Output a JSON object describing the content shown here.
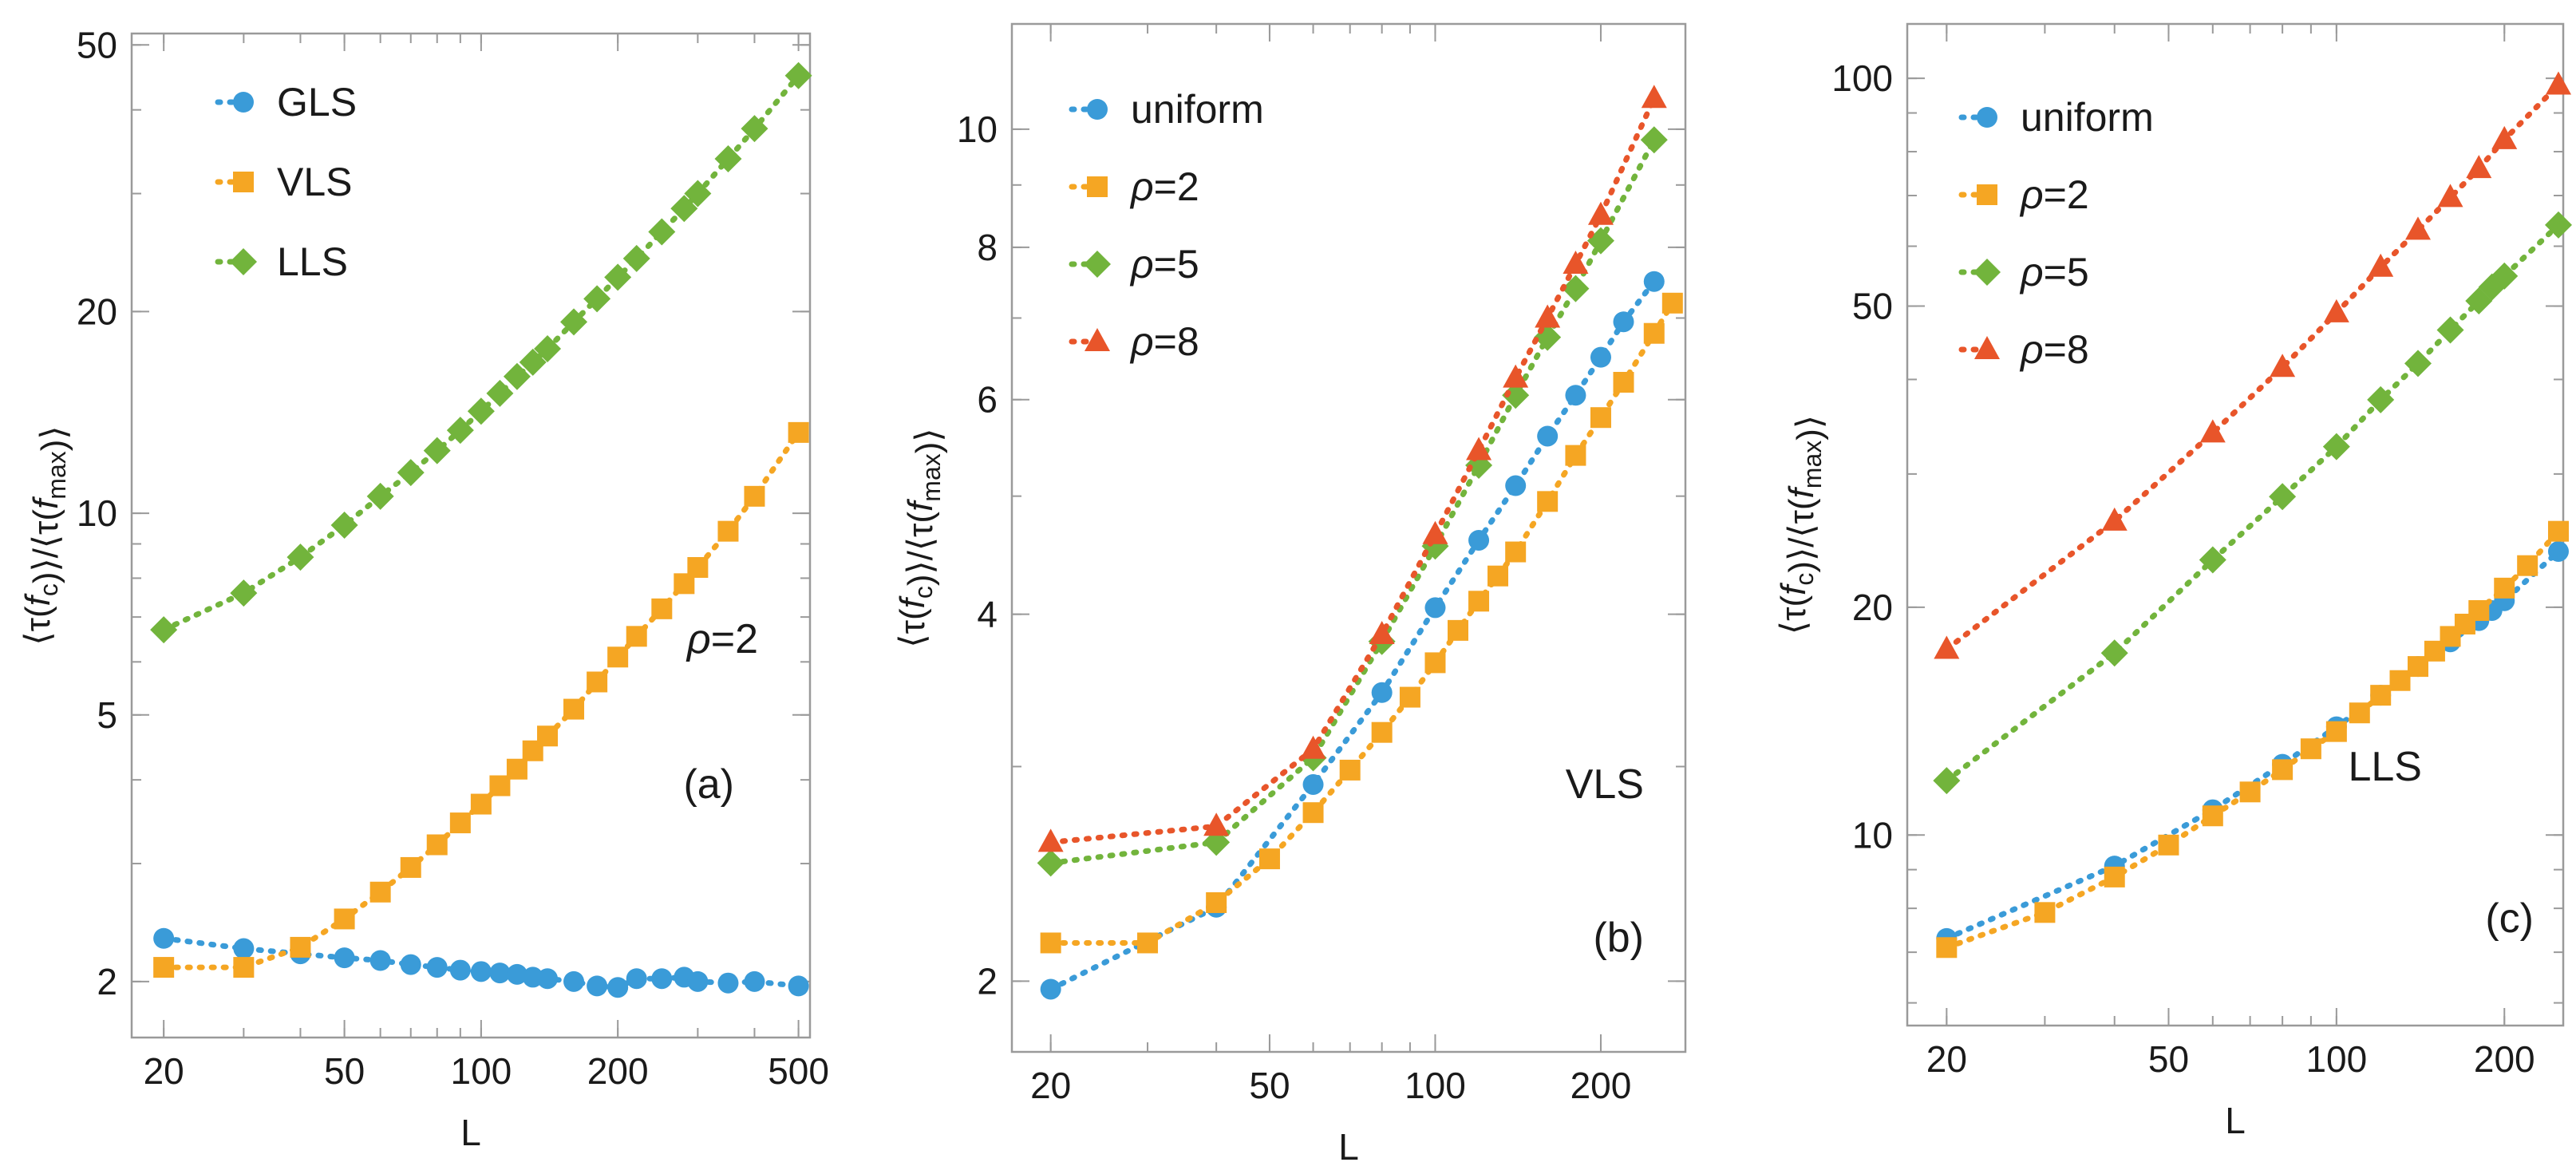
{
  "colors": {
    "blue": "#3a9bd8",
    "orange": "#f5a623",
    "green": "#72b43c",
    "red": "#e8552a",
    "frame": "#9a9a9a"
  },
  "chart_data": [
    {
      "type": "scatter",
      "panel_label": "(a)",
      "annotation": "ρ=2",
      "xlabel": "L",
      "ylabel": "⟨τ(f_c)⟩/⟨τ(f_max)⟩",
      "xscale": "log",
      "yscale": "log",
      "xlim": [
        17,
        530
      ],
      "ylim": [
        1.65,
        52
      ],
      "xticks": [
        20,
        50,
        100,
        200,
        500
      ],
      "xtick_labels": [
        "20",
        "50",
        "100",
        "200",
        "500"
      ],
      "yticks": [
        2,
        5,
        10,
        20,
        50
      ],
      "ytick_labels": [
        "2",
        "5",
        "10",
        "20",
        "50"
      ],
      "legend_position": "top-left",
      "series": [
        {
          "name": "GLS",
          "marker": "circle",
          "color": "blue",
          "x": [
            20,
            30,
            40,
            50,
            60,
            70,
            80,
            90,
            100,
            110,
            120,
            130,
            140,
            160,
            180,
            200,
            220,
            250,
            280,
            300,
            350,
            400,
            500
          ],
          "y": [
            2.32,
            2.24,
            2.2,
            2.17,
            2.15,
            2.12,
            2.1,
            2.08,
            2.07,
            2.06,
            2.05,
            2.03,
            2.02,
            2.0,
            1.97,
            1.96,
            2.02,
            2.02,
            2.03,
            2.0,
            1.99,
            2.0,
            1.97
          ]
        },
        {
          "name": "VLS",
          "marker": "square",
          "color": "orange",
          "x": [
            20,
            30,
            40,
            50,
            60,
            70,
            80,
            90,
            100,
            110,
            120,
            130,
            140,
            160,
            180,
            200,
            220,
            250,
            280,
            300,
            350,
            400,
            500
          ],
          "y": [
            2.1,
            2.1,
            2.25,
            2.48,
            2.72,
            2.96,
            3.2,
            3.45,
            3.68,
            3.92,
            4.15,
            4.42,
            4.65,
            5.1,
            5.6,
            6.1,
            6.55,
            7.2,
            7.85,
            8.3,
            9.4,
            10.6,
            13.2
          ]
        },
        {
          "name": "LLS",
          "marker": "diamond",
          "color": "green",
          "x": [
            20,
            30,
            40,
            50,
            60,
            70,
            80,
            90,
            100,
            110,
            120,
            130,
            140,
            160,
            180,
            200,
            220,
            250,
            280,
            300,
            350,
            400,
            500
          ],
          "y": [
            6.7,
            7.6,
            8.6,
            9.6,
            10.6,
            11.5,
            12.4,
            13.3,
            14.2,
            15.1,
            16.0,
            16.8,
            17.6,
            19.3,
            20.9,
            22.5,
            24.0,
            26.3,
            28.5,
            30.0,
            33.8,
            37.5,
            45.0
          ]
        }
      ]
    },
    {
      "type": "scatter",
      "panel_label": "(b)",
      "annotation": "VLS",
      "xlabel": "L",
      "ylabel": "⟨τ(f_c)⟩/⟨τ(f_max)⟩",
      "xscale": "log",
      "yscale": "log",
      "xlim": [
        17,
        285
      ],
      "ylim": [
        1.75,
        12.2
      ],
      "xticks": [
        20,
        50,
        100,
        200
      ],
      "xtick_labels": [
        "20",
        "50",
        "100",
        "200"
      ],
      "yticks": [
        2,
        4,
        6,
        8,
        10
      ],
      "ytick_labels": [
        "2",
        "4",
        "6",
        "8",
        "10"
      ],
      "legend_position": "top-left",
      "series": [
        {
          "name": "uniform",
          "marker": "circle",
          "color": "blue",
          "x": [
            20,
            40,
            60,
            80,
            100,
            120,
            140,
            160,
            180,
            200,
            220,
            250
          ],
          "y": [
            1.97,
            2.3,
            2.9,
            3.45,
            4.05,
            4.6,
            5.1,
            5.6,
            6.05,
            6.5,
            6.95,
            7.5
          ]
        },
        {
          "name": "ρ=2",
          "marker": "square",
          "color": "orange",
          "x": [
            20,
            30,
            40,
            50,
            60,
            70,
            80,
            90,
            100,
            110,
            120,
            130,
            140,
            160,
            180,
            200,
            220,
            250,
            270
          ],
          "y": [
            2.15,
            2.15,
            2.32,
            2.52,
            2.75,
            2.98,
            3.2,
            3.42,
            3.65,
            3.88,
            4.1,
            4.3,
            4.5,
            4.95,
            5.4,
            5.8,
            6.2,
            6.8,
            7.2
          ]
        },
        {
          "name": "ρ=5",
          "marker": "diamond",
          "color": "green",
          "x": [
            20,
            40,
            60,
            80,
            100,
            120,
            140,
            160,
            180,
            200,
            250
          ],
          "y": [
            2.5,
            2.6,
            3.05,
            3.8,
            4.55,
            5.3,
            6.05,
            6.75,
            7.4,
            8.1,
            9.8
          ]
        },
        {
          "name": "ρ=8",
          "marker": "triangle",
          "color": "red",
          "x": [
            20,
            40,
            60,
            80,
            100,
            120,
            140,
            160,
            180,
            200,
            250
          ],
          "y": [
            2.6,
            2.68,
            3.1,
            3.85,
            4.65,
            5.45,
            6.25,
            7.0,
            7.75,
            8.5,
            10.6
          ]
        }
      ]
    },
    {
      "type": "scatter",
      "panel_label": "(c)",
      "annotation": "LLS",
      "xlabel": "L",
      "ylabel": "⟨τ(f_c)⟩/⟨τ(f_max)⟩",
      "xscale": "log",
      "yscale": "log",
      "xlim": [
        17,
        255
      ],
      "ylim": [
        5.6,
        118
      ],
      "xticks": [
        20,
        50,
        100,
        200
      ],
      "xtick_labels": [
        "20",
        "50",
        "100",
        "200"
      ],
      "yticks": [
        10,
        20,
        50,
        100
      ],
      "ytick_labels": [
        "10",
        "20",
        "50",
        "100"
      ],
      "legend_position": "top-left",
      "series": [
        {
          "name": "uniform",
          "marker": "circle",
          "color": "blue",
          "x": [
            20,
            40,
            60,
            80,
            100,
            120,
            140,
            160,
            180,
            190,
            200,
            250
          ],
          "y": [
            7.3,
            9.1,
            10.8,
            12.4,
            13.9,
            15.3,
            16.7,
            18.0,
            19.2,
            19.8,
            20.4,
            23.7
          ]
        },
        {
          "name": "ρ=2",
          "marker": "square",
          "color": "orange",
          "x": [
            20,
            30,
            40,
            50,
            60,
            70,
            80,
            90,
            100,
            110,
            120,
            130,
            140,
            150,
            160,
            170,
            180,
            200,
            220,
            250
          ],
          "y": [
            7.1,
            7.9,
            8.8,
            9.7,
            10.6,
            11.4,
            12.2,
            13.0,
            13.7,
            14.5,
            15.3,
            16.0,
            16.7,
            17.5,
            18.3,
            19.0,
            19.8,
            21.2,
            22.7,
            25.2
          ]
        },
        {
          "name": "ρ=5",
          "marker": "diamond",
          "color": "green",
          "x": [
            20,
            40,
            60,
            80,
            100,
            120,
            140,
            160,
            180,
            190,
            200,
            250
          ],
          "y": [
            11.8,
            17.4,
            23.1,
            28.0,
            32.6,
            37.6,
            42.0,
            46.5,
            50.8,
            53.0,
            54.8,
            64.0
          ]
        },
        {
          "name": "ρ=8",
          "marker": "triangle",
          "color": "red",
          "x": [
            20,
            40,
            60,
            80,
            100,
            120,
            140,
            160,
            180,
            200,
            250
          ],
          "y": [
            17.6,
            26.0,
            34.0,
            41.5,
            49.0,
            56.3,
            63.0,
            69.6,
            76.0,
            83.0,
            98.0
          ]
        }
      ]
    }
  ]
}
